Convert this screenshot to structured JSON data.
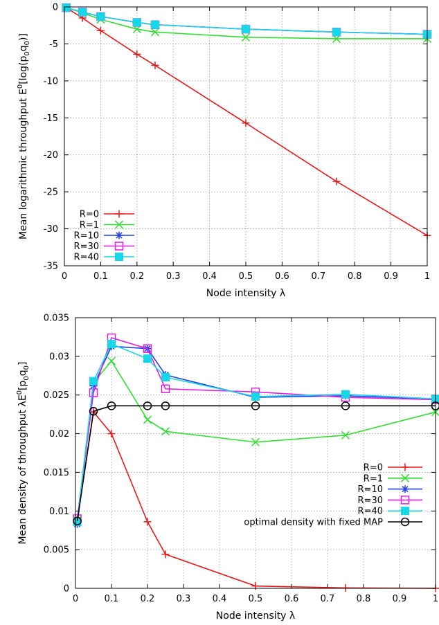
{
  "chart_data": [
    {
      "type": "line",
      "title": "",
      "xlabel": "Node intensity λ",
      "ylabel": "Mean logarithmic throughput E",
      "ylabel_sup": "0",
      "ylabel_tail": "[log(p",
      "ylabel_sub1": "0",
      "ylabel_mid": "q",
      "ylabel_sub2": "0",
      "ylabel_end": ")]",
      "xlim": [
        0,
        1
      ],
      "ylim": [
        -35,
        0
      ],
      "x_ticks": [
        "0",
        "0.1",
        "0.2",
        "0.3",
        "0.4",
        "0.5",
        "0.6",
        "0.7",
        "0.8",
        "0.9",
        "1"
      ],
      "y_ticks": [
        "0",
        "-5",
        "-10",
        "-15",
        "-20",
        "-25",
        "-30",
        "-35"
      ],
      "grid": true,
      "legend_position": "bottom-left",
      "x": [
        0.005,
        0.05,
        0.1,
        0.2,
        0.25,
        0.5,
        0.75,
        1.0
      ],
      "series": [
        {
          "name": "R=0",
          "color": "#e41a1c",
          "marker": "plus",
          "values": [
            -0.1,
            -1.5,
            -3.2,
            -6.4,
            -7.9,
            -15.7,
            -23.6,
            -30.9
          ]
        },
        {
          "name": "R=1",
          "color": "#33dd33",
          "marker": "cross",
          "values": [
            -0.1,
            -0.8,
            -1.7,
            -3.0,
            -3.4,
            -4.1,
            -4.3,
            -4.3
          ]
        },
        {
          "name": "R=10",
          "color": "#2040e0",
          "marker": "star",
          "values": [
            -0.1,
            -0.7,
            -1.3,
            -2.1,
            -2.4,
            -3.0,
            -3.4,
            -3.7
          ]
        },
        {
          "name": "R=30",
          "color": "#e01fe0",
          "marker": "square-open",
          "values": [
            -0.1,
            -0.7,
            -1.3,
            -2.1,
            -2.4,
            -3.0,
            -3.4,
            -3.7
          ]
        },
        {
          "name": "R=40",
          "color": "#18d8e8",
          "marker": "square-filled",
          "values": [
            -0.1,
            -0.7,
            -1.3,
            -2.1,
            -2.4,
            -3.0,
            -3.4,
            -3.7
          ]
        }
      ]
    },
    {
      "type": "line",
      "title": "",
      "xlabel": "Node intensity λ",
      "ylabel": "Mean density of throughput  λE",
      "ylabel_sup": "0",
      "ylabel_tail": "[p",
      "ylabel_sub1": "0",
      "ylabel_mid": "q",
      "ylabel_sub2": "0",
      "ylabel_end": "]",
      "xlim": [
        0,
        1
      ],
      "ylim": [
        0,
        0.035
      ],
      "x_ticks": [
        "0",
        "0.1",
        "0.2",
        "0.3",
        "0.4",
        "0.5",
        "0.6",
        "0.7",
        "0.8",
        "0.9",
        "1"
      ],
      "y_ticks": [
        "0",
        "0.005",
        "0.01",
        "0.015",
        "0.02",
        "0.025",
        "0.03",
        "0.035"
      ],
      "grid": true,
      "legend_position": "bottom-right",
      "x": [
        0.005,
        0.05,
        0.1,
        0.2,
        0.25,
        0.5,
        0.75,
        1.0
      ],
      "series": [
        {
          "name": "R=0",
          "color": "#e41a1c",
          "marker": "plus",
          "values": [
            0.0088,
            0.0228,
            0.02,
            0.0086,
            0.0044,
            0.0003,
            5e-05,
            0.0
          ]
        },
        {
          "name": "R=1",
          "color": "#33dd33",
          "marker": "cross",
          "values": [
            0.0088,
            0.0266,
            0.0294,
            0.0218,
            0.0203,
            0.0189,
            0.0198,
            0.0228
          ]
        },
        {
          "name": "R=10",
          "color": "#2040e0",
          "marker": "star",
          "values": [
            0.0083,
            0.0262,
            0.0313,
            0.031,
            0.0276,
            0.0247,
            0.0249,
            0.0245
          ]
        },
        {
          "name": "R=30",
          "color": "#e01fe0",
          "marker": "square-open",
          "values": [
            0.009,
            0.0253,
            0.0324,
            0.031,
            0.0258,
            0.0254,
            0.0247,
            0.0244
          ]
        },
        {
          "name": "R=40",
          "color": "#18d8e8",
          "marker": "square-filled",
          "values": [
            0.0086,
            0.0268,
            0.0316,
            0.0297,
            0.0273,
            0.0248,
            0.0251,
            0.0245
          ]
        },
        {
          "name": "optimal density with fixed MAP",
          "color": "#000000",
          "marker": "circle-open",
          "values": [
            0.0087,
            0.0229,
            0.0236,
            0.0236,
            0.0236,
            0.0236,
            0.0236,
            0.0236
          ]
        }
      ]
    }
  ]
}
